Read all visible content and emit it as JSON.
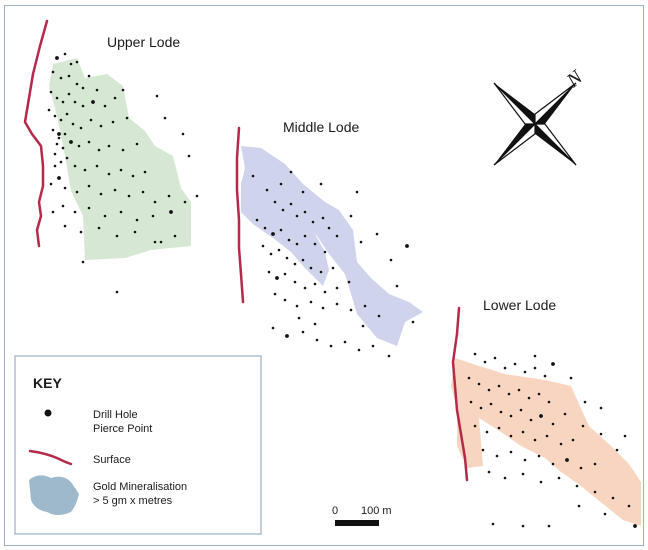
{
  "lodes": [
    {
      "id": "upper",
      "label": "Upper Lode",
      "fill": "#d6e8d3"
    },
    {
      "id": "middle",
      "label": "Middle Lode",
      "fill": "#cfd3ec"
    },
    {
      "id": "lower",
      "label": "Lower Lode",
      "fill": "#f8d5c0"
    }
  ],
  "key": {
    "title": "KEY",
    "drill_hole_line1": "Drill Hole",
    "drill_hole_line2": "Pierce Point",
    "surface": "Surface",
    "gold_line1": "Gold Mineralisation",
    "gold_line2": "> 5 gm x metres"
  },
  "scale": {
    "start": "0",
    "end": "100 m"
  },
  "north": {
    "label": "N",
    "icon": "north-arrow-icon"
  },
  "colors": {
    "surface": "#b5294a",
    "drill_point": "#111111",
    "gold_swatch": "#9fb9cc",
    "frame": "#9ab0c8"
  }
}
